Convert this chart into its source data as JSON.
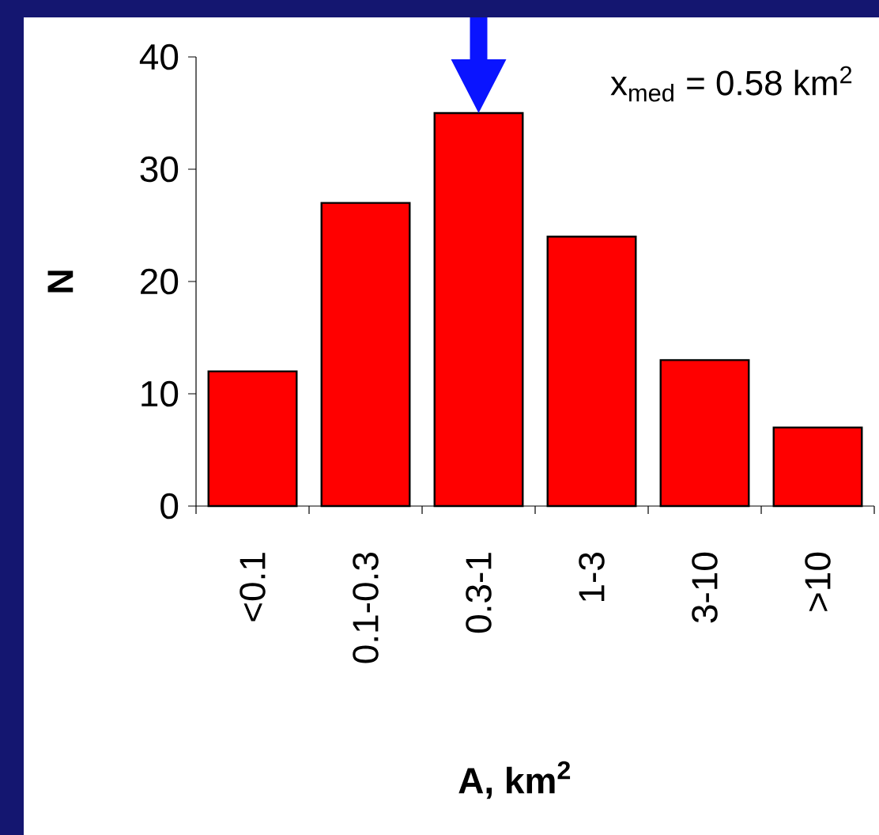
{
  "chart_data": {
    "type": "bar",
    "xlabel": "A, km$^{2}$",
    "ylabel": "N",
    "categories": [
      "<0.1",
      "0.1-0.3",
      "0.3-1",
      "1-3",
      "3-10",
      ">10"
    ],
    "values": [
      12,
      27,
      35,
      24,
      13,
      7
    ],
    "color": "#ff0000",
    "ylim": [
      0,
      40
    ],
    "yticks": [
      0,
      10,
      20,
      30,
      40
    ],
    "annotations": [
      "x$_{med}$ = 0.58 km$^{2}$"
    ]
  }
}
